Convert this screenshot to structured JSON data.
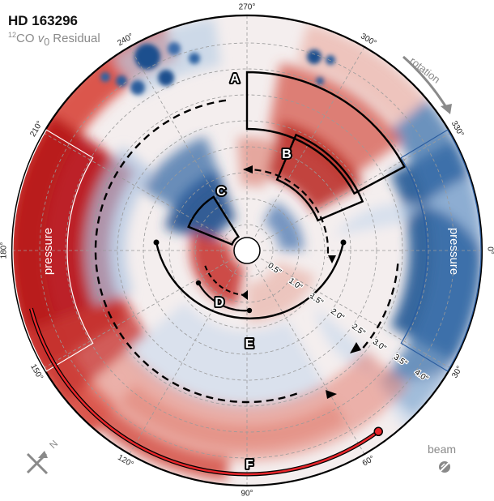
{
  "header": {
    "title": "HD 163296",
    "subtitle_sup": "12",
    "subtitle_co": "CO ",
    "subtitle_v": "v",
    "subtitle_sub": "0",
    "subtitle_rest": " Residual"
  },
  "polar_labels": {
    "angles": [
      "270°",
      "300°",
      "330°",
      "0°",
      "30°",
      "60°",
      "90°",
      "120°",
      "150°",
      "180°",
      "210°",
      "240°"
    ],
    "radii": [
      "0.5\"",
      "1.0\"",
      "1.5\"",
      "2.0\"",
      "2.5\"",
      "3.0\"",
      "3.5\"",
      "4.0\""
    ]
  },
  "features": {
    "A": "A",
    "B": "B",
    "C": "C",
    "D": "D",
    "E": "E",
    "F": "F"
  },
  "annotations": {
    "pressure_left": "pressure",
    "pressure_right": "pressure",
    "rotation": "rotation",
    "beam": "beam",
    "north": "N"
  },
  "colors": {
    "red": "#c0201f",
    "blue": "#1f4e8c",
    "background": "#ffffff",
    "feature_line": "#000000",
    "highlight": "#e8262b"
  }
}
